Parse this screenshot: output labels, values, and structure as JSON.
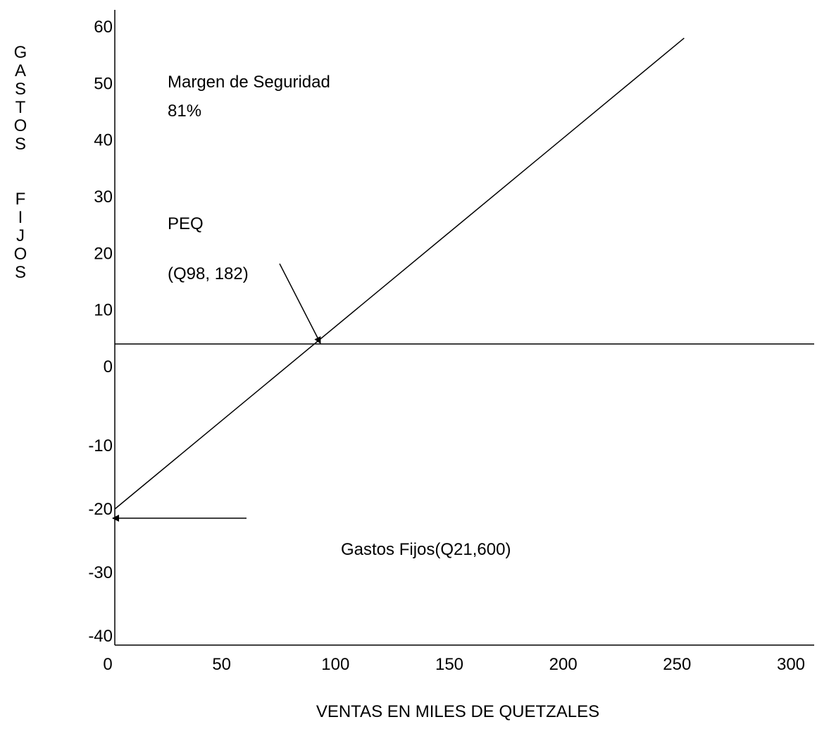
{
  "chart_data": {
    "type": "line",
    "title": "",
    "xlabel": "VENTAS EN MILES DE QUETZALES",
    "ylabel": "GASTOS FIJOS",
    "xlim": [
      0,
      300
    ],
    "ylim": [
      -40,
      60
    ],
    "x_ticks": [
      0,
      50,
      100,
      150,
      200,
      250,
      300
    ],
    "y_ticks": [
      60,
      50,
      40,
      30,
      20,
      10,
      0,
      -10,
      -20,
      -30,
      -40
    ],
    "grid": false,
    "legend": "none",
    "series": [
      {
        "x": [
          0,
          250
        ],
        "y": [
          -20,
          58
        ]
      }
    ],
    "reference_lines": [
      {
        "axis": "y",
        "value": 4
      }
    ],
    "annotations": {
      "margen_label": "Margen de Seguridad",
      "margen_value": "81%",
      "peq_label": "PEQ",
      "peq_value": "(Q98, 182)",
      "gastos_fijos": "Gastos Fijos(Q21,600)"
    },
    "colors": {
      "line": "#000000",
      "text": "#000000",
      "background": "#ffffff"
    }
  }
}
